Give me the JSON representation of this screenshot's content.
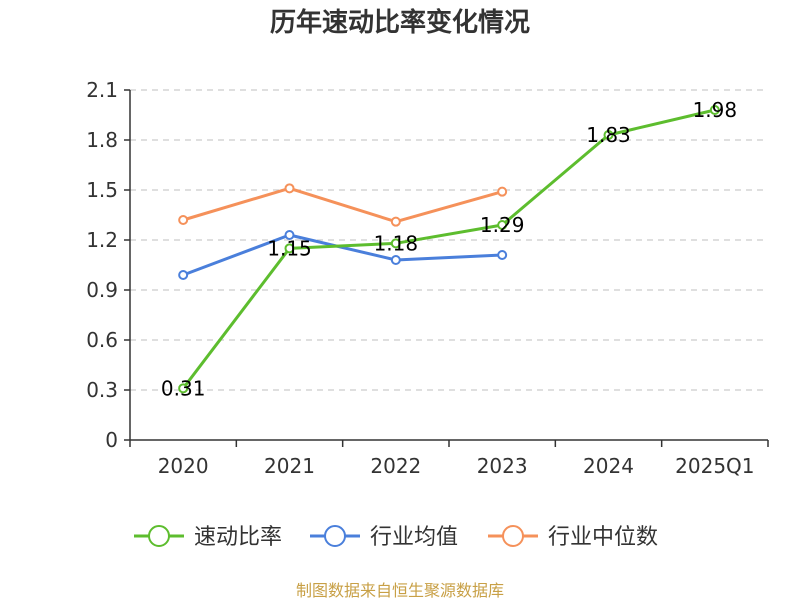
{
  "chart_data": {
    "type": "line",
    "title": "历年速动比率变化情况",
    "categories": [
      "2020",
      "2021",
      "2022",
      "2023",
      "2024",
      "2025Q1"
    ],
    "ylim": [
      0,
      2.1
    ],
    "yticks": [
      "0",
      "0.3",
      "0.6",
      "0.9",
      "1.2",
      "1.5",
      "1.8",
      "2.1"
    ],
    "grid": true,
    "legend_position": "bottom",
    "series": [
      {
        "name": "速动比率",
        "color": "#5dbd2e",
        "values": [
          0.31,
          1.15,
          1.18,
          1.29,
          1.83,
          1.98
        ],
        "labels": [
          "0.31",
          "1.15",
          "1.18",
          "1.29",
          "1.83",
          "1.98"
        ]
      },
      {
        "name": "行业均值",
        "color": "#4a7fdb",
        "values": [
          0.99,
          1.23,
          1.08,
          1.11,
          null,
          null
        ]
      },
      {
        "name": "行业中位数",
        "color": "#f5915a",
        "values": [
          1.32,
          1.51,
          1.31,
          1.49,
          null,
          null
        ]
      }
    ]
  },
  "source_note": "制图数据来自恒生聚源数据库"
}
